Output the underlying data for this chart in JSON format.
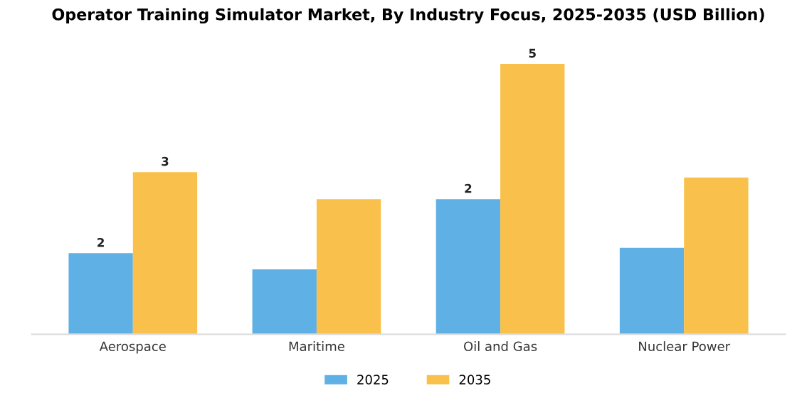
{
  "chart_data": {
    "type": "bar",
    "title": "Operator Training Simulator Market, By Industry Focus, 2025-2035 (USD Billion)",
    "categories": [
      "Aerospace",
      "Maritime",
      "Oil and Gas",
      "Nuclear Power"
    ],
    "tick_labels": "x",
    "legend": "bottom",
    "grid": false,
    "series": [
      {
        "name": "2025",
        "color": "#5eb0e5",
        "values": [
          1.5,
          1.2,
          2.5,
          1.6
        ],
        "value_labels": [
          "2",
          null,
          "2",
          null
        ]
      },
      {
        "name": "2035",
        "color": "#f9c14b",
        "values": [
          3.0,
          2.5,
          5.0,
          2.9
        ],
        "value_labels": [
          "3",
          null,
          "5",
          null
        ]
      }
    ]
  }
}
